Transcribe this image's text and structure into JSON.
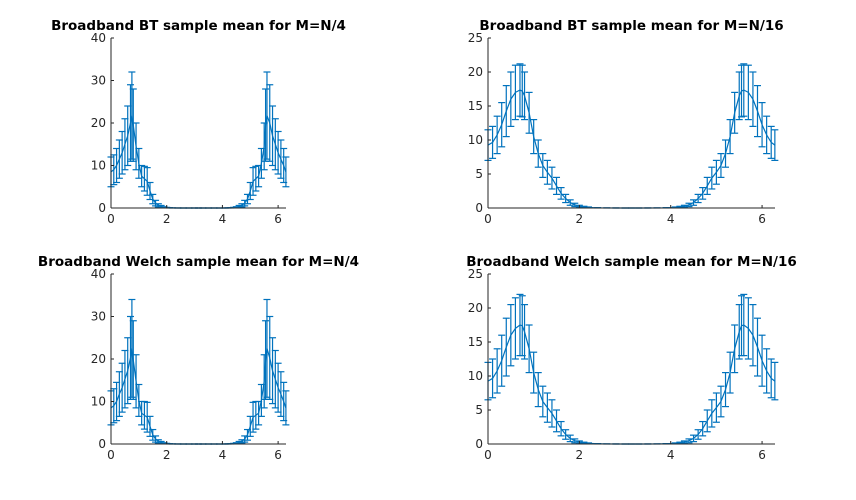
{
  "colors": {
    "series": "#0072BD",
    "axis": "#262626",
    "background": "#ffffff"
  },
  "chart_data": [
    {
      "type": "line",
      "variant": "errorbar",
      "title": "Broadband BT sample mean for M=N/4",
      "xlim": [
        0,
        6.2832
      ],
      "ylim": [
        0,
        40
      ],
      "xticks": [
        0,
        2,
        4,
        6
      ],
      "yticks": [
        0,
        10,
        20,
        30,
        40
      ],
      "x": [
        0,
        0.1,
        0.2,
        0.3,
        0.4,
        0.5,
        0.6,
        0.7,
        0.75,
        0.8,
        0.9,
        1.0,
        1.1,
        1.2,
        1.3,
        1.4,
        1.5,
        1.6,
        1.7,
        1.8,
        1.9,
        2.0,
        2.1,
        2.2,
        2.4,
        2.6,
        2.8,
        3.0,
        3.14,
        3.3,
        3.5,
        3.7,
        3.9,
        4.1,
        4.2,
        4.3,
        4.4,
        4.5,
        4.6,
        4.7,
        4.8,
        4.9,
        5.0,
        5.1,
        5.2,
        5.3,
        5.4,
        5.5,
        5.55,
        5.6,
        5.7,
        5.8,
        5.9,
        6.0,
        6.1,
        6.2,
        6.28
      ],
      "upper": [
        12,
        12.5,
        14,
        16,
        18,
        21,
        24,
        29,
        32,
        28,
        20,
        14,
        10,
        9.8,
        9.5,
        6,
        3.2,
        1.8,
        1.0,
        0.6,
        0.3,
        0.15,
        0.07,
        0.03,
        0.01,
        0,
        0,
        0,
        0,
        0,
        0,
        0,
        0,
        0.01,
        0.03,
        0.07,
        0.15,
        0.3,
        0.6,
        1.0,
        1.8,
        3.2,
        6,
        9.5,
        9.8,
        10,
        14,
        20,
        28,
        32,
        29,
        24,
        21,
        18,
        16,
        14,
        12
      ],
      "lower": [
        5,
        5.5,
        6,
        7,
        8,
        9,
        10,
        11,
        11.5,
        11,
        9,
        7,
        5,
        4,
        3,
        2,
        1,
        0.5,
        0.2,
        0.1,
        0.05,
        0.02,
        0.01,
        0,
        0,
        0,
        0,
        0,
        0,
        0,
        0,
        0,
        0,
        0,
        0,
        0.01,
        0.02,
        0.05,
        0.1,
        0.2,
        0.5,
        1,
        2,
        3,
        4,
        5,
        7,
        9,
        11,
        11.5,
        11,
        10,
        9,
        8,
        7,
        6,
        5
      ]
    },
    {
      "type": "line",
      "variant": "errorbar",
      "title": "Broadband BT sample mean for M=N/16",
      "xlim": [
        0,
        6.2832
      ],
      "ylim": [
        0,
        25
      ],
      "xticks": [
        0,
        2,
        4,
        6
      ],
      "yticks": [
        0,
        5,
        10,
        15,
        20,
        25
      ],
      "x": [
        0,
        0.1,
        0.2,
        0.3,
        0.4,
        0.5,
        0.6,
        0.7,
        0.75,
        0.8,
        0.9,
        1.0,
        1.1,
        1.2,
        1.3,
        1.4,
        1.5,
        1.6,
        1.7,
        1.8,
        1.9,
        2.0,
        2.1,
        2.2,
        2.4,
        2.6,
        2.8,
        3.0,
        3.14,
        3.3,
        3.5,
        3.7,
        3.9,
        4.1,
        4.2,
        4.3,
        4.4,
        4.5,
        4.6,
        4.7,
        4.8,
        4.9,
        5.0,
        5.1,
        5.2,
        5.3,
        5.4,
        5.5,
        5.55,
        5.6,
        5.7,
        5.8,
        5.9,
        6.0,
        6.1,
        6.2,
        6.28
      ],
      "upper": [
        11.5,
        12,
        13.5,
        15.5,
        18,
        20,
        21,
        21.2,
        21,
        20,
        17,
        13,
        10,
        8,
        7,
        6,
        4.5,
        3,
        2,
        1.2,
        0.7,
        0.4,
        0.25,
        0.15,
        0.05,
        0.02,
        0.01,
        0,
        0,
        0,
        0.01,
        0.02,
        0.05,
        0.15,
        0.25,
        0.4,
        0.7,
        1.2,
        2,
        3,
        4.5,
        6,
        7,
        8,
        10,
        13,
        17,
        20,
        21,
        21.2,
        21,
        20,
        18,
        15.5,
        13.5,
        12,
        11.5
      ],
      "lower": [
        7,
        7.3,
        8,
        9,
        10.5,
        12,
        13,
        13.5,
        13.4,
        13,
        11,
        8,
        6,
        4.5,
        3.5,
        2.8,
        2,
        1.3,
        0.8,
        0.4,
        0.2,
        0.1,
        0.05,
        0.02,
        0.01,
        0,
        0,
        0,
        0,
        0,
        0,
        0,
        0.01,
        0.02,
        0.05,
        0.1,
        0.2,
        0.4,
        0.8,
        1.3,
        2,
        2.8,
        3.5,
        4.5,
        6,
        8,
        11,
        13,
        13.4,
        13.5,
        13,
        12,
        10.5,
        9,
        8,
        7.3,
        7
      ]
    },
    {
      "type": "line",
      "variant": "errorbar",
      "title": "Broadband Welch sample mean for M=N/4",
      "xlim": [
        0,
        6.2832
      ],
      "ylim": [
        0,
        40
      ],
      "xticks": [
        0,
        2,
        4,
        6
      ],
      "yticks": [
        0,
        10,
        20,
        30,
        40
      ],
      "x": [
        0,
        0.1,
        0.2,
        0.3,
        0.4,
        0.5,
        0.6,
        0.7,
        0.75,
        0.8,
        0.9,
        1.0,
        1.1,
        1.2,
        1.3,
        1.4,
        1.5,
        1.6,
        1.7,
        1.8,
        1.9,
        2.0,
        2.1,
        2.2,
        2.4,
        2.6,
        2.8,
        3.0,
        3.14,
        3.3,
        3.5,
        3.7,
        3.9,
        4.1,
        4.2,
        4.3,
        4.4,
        4.5,
        4.6,
        4.7,
        4.8,
        4.9,
        5.0,
        5.1,
        5.2,
        5.3,
        5.4,
        5.5,
        5.55,
        5.6,
        5.7,
        5.8,
        5.9,
        6.0,
        6.1,
        6.2,
        6.28
      ],
      "upper": [
        12.5,
        13,
        14.5,
        17,
        19,
        22,
        25,
        30,
        34,
        29,
        21,
        14,
        10,
        10,
        9.8,
        6.5,
        3.4,
        1.9,
        1.0,
        0.6,
        0.3,
        0.15,
        0.07,
        0.03,
        0.01,
        0,
        0,
        0,
        0,
        0,
        0,
        0,
        0,
        0.01,
        0.03,
        0.07,
        0.15,
        0.3,
        0.6,
        1.0,
        1.9,
        3.4,
        6.5,
        9.8,
        10,
        10,
        14,
        21,
        29,
        34,
        30,
        25,
        22,
        19,
        17,
        14.5,
        12.5
      ],
      "lower": [
        4.5,
        5,
        5.5,
        6.5,
        7.5,
        8.5,
        9.5,
        10.5,
        11,
        10.5,
        8.5,
        6.5,
        4.5,
        3.5,
        2.8,
        1.8,
        0.9,
        0.45,
        0.2,
        0.1,
        0.05,
        0.02,
        0.01,
        0,
        0,
        0,
        0,
        0,
        0,
        0,
        0,
        0,
        0,
        0,
        0,
        0.01,
        0.02,
        0.05,
        0.1,
        0.2,
        0.45,
        0.9,
        1.8,
        2.8,
        3.5,
        4.5,
        6.5,
        8.5,
        10.5,
        11,
        10.5,
        9.5,
        8.5,
        7.5,
        6.5,
        5.5,
        4.5
      ]
    },
    {
      "type": "line",
      "variant": "errorbar",
      "title": "Broadband Welch sample mean for M=N/16",
      "xlim": [
        0,
        6.2832
      ],
      "ylim": [
        0,
        25
      ],
      "xticks": [
        0,
        2,
        4,
        6
      ],
      "yticks": [
        0,
        5,
        10,
        15,
        20,
        25
      ],
      "x": [
        0,
        0.1,
        0.2,
        0.3,
        0.4,
        0.5,
        0.6,
        0.7,
        0.75,
        0.8,
        0.9,
        1.0,
        1.1,
        1.2,
        1.3,
        1.4,
        1.5,
        1.6,
        1.7,
        1.8,
        1.9,
        2.0,
        2.1,
        2.2,
        2.4,
        2.6,
        2.8,
        3.0,
        3.14,
        3.3,
        3.5,
        3.7,
        3.9,
        4.1,
        4.2,
        4.3,
        4.4,
        4.5,
        4.6,
        4.7,
        4.8,
        4.9,
        5.0,
        5.1,
        5.2,
        5.3,
        5.4,
        5.5,
        5.55,
        5.6,
        5.7,
        5.8,
        5.9,
        6.0,
        6.1,
        6.2,
        6.28
      ],
      "upper": [
        12,
        12.5,
        14,
        16,
        18.5,
        20.5,
        21.5,
        22,
        21.8,
        20.5,
        17.5,
        13.5,
        10.5,
        8.5,
        7.5,
        6.5,
        5,
        3.3,
        2.1,
        1.3,
        0.75,
        0.45,
        0.27,
        0.16,
        0.06,
        0.02,
        0.01,
        0,
        0,
        0,
        0.01,
        0.02,
        0.06,
        0.16,
        0.27,
        0.45,
        0.75,
        1.3,
        2.1,
        3.3,
        5,
        6.5,
        7.5,
        8.5,
        10.5,
        13.5,
        17.5,
        20.5,
        21.8,
        22,
        21.5,
        20.5,
        18.5,
        16,
        14,
        12.5,
        12
      ],
      "lower": [
        6.5,
        6.8,
        7.5,
        8.5,
        10,
        11.5,
        12.5,
        13,
        13,
        12.5,
        10.5,
        7.5,
        5.5,
        4,
        3.2,
        2.5,
        1.8,
        1.2,
        0.7,
        0.35,
        0.18,
        0.09,
        0.04,
        0.02,
        0.01,
        0,
        0,
        0,
        0,
        0,
        0,
        0,
        0.01,
        0.02,
        0.04,
        0.09,
        0.18,
        0.35,
        0.7,
        1.2,
        1.8,
        2.5,
        3.2,
        4,
        5.5,
        7.5,
        10.5,
        12.5,
        13,
        13,
        12.5,
        11.5,
        10,
        8.5,
        7.5,
        6.8,
        6.5
      ]
    }
  ]
}
